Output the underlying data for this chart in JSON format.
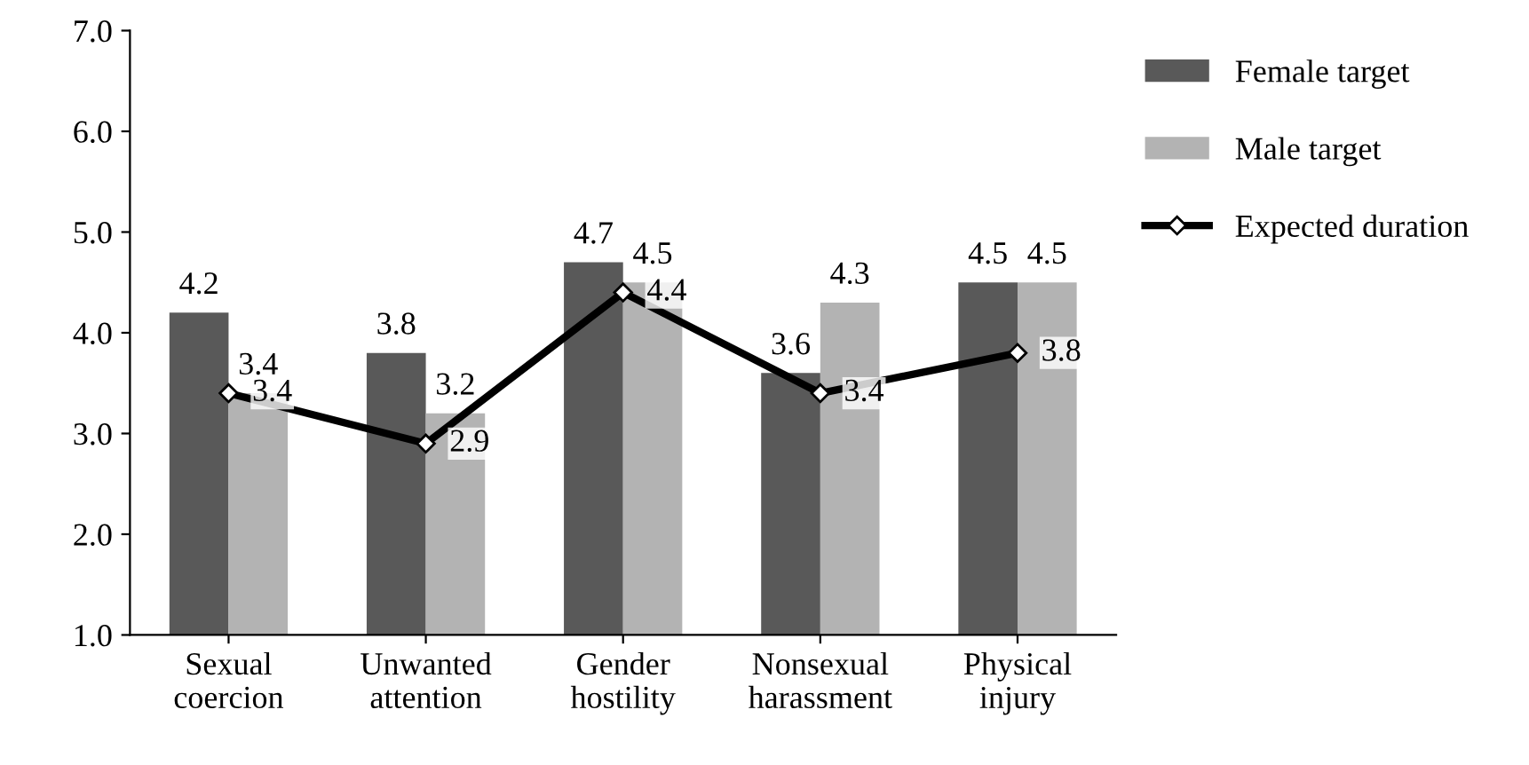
{
  "chart_data": {
    "type": "bar",
    "categories": [
      "Sexual\ncoercion",
      "Unwanted\nattention",
      "Gender\nhostility",
      "Nonsexual\nharassment",
      "Physical\ninjury"
    ],
    "series": [
      {
        "name": "Female target",
        "color": "#595959",
        "values": [
          4.2,
          3.8,
          4.7,
          3.6,
          4.5
        ]
      },
      {
        "name": "Male target",
        "color": "#b3b3b3",
        "values": [
          3.4,
          3.2,
          4.5,
          4.3,
          4.5
        ]
      },
      {
        "name": "Expected duration",
        "type": "line",
        "color": "#000000",
        "values": [
          3.4,
          2.9,
          4.4,
          3.4,
          3.8
        ],
        "marker": "diamond",
        "line_style": "solid"
      }
    ],
    "ylim": [
      1,
      7
    ],
    "yticks": [
      {
        "value": 1,
        "label": "1.0"
      },
      {
        "value": 2,
        "label": "2.0"
      },
      {
        "value": 3,
        "label": "3.0"
      },
      {
        "value": 4,
        "label": "4.0"
      },
      {
        "value": 5,
        "label": "5.0"
      },
      {
        "value": 6,
        "label": "6.0"
      },
      {
        "value": 7,
        "label": "7.0"
      }
    ],
    "grid": false,
    "legend": "right",
    "data_labels": true
  }
}
